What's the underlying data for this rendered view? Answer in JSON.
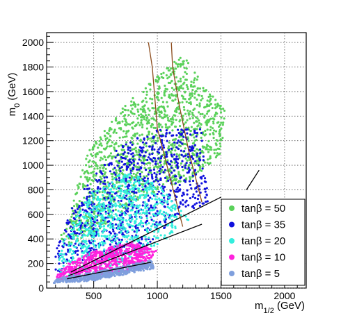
{
  "chart_data": {
    "type": "scatter",
    "title": "",
    "xlabel": "m_{1/2} (GeV)",
    "xlabel_main": "m",
    "xlabel_sub": "1/2",
    "xlabel_unit": " (GeV)",
    "ylabel": "m_0 (GeV)",
    "ylabel_main": "m",
    "ylabel_sub": "0",
    "ylabel_unit": " (GeV)",
    "xlim": [
      130,
      2170
    ],
    "ylim": [
      0,
      2080
    ],
    "x_ticks": [
      500,
      1000,
      1500,
      2000
    ],
    "x_tick_labels": [
      "500",
      "1000",
      "1500",
      "2000"
    ],
    "y_ticks": [
      0,
      200,
      400,
      600,
      800,
      1000,
      1200,
      1400,
      1600,
      1800,
      2000
    ],
    "y_tick_labels": [
      "0",
      "200",
      "400",
      "600",
      "800",
      "1000",
      "1200",
      "1400",
      "1600",
      "1800",
      "2000"
    ],
    "grid": true,
    "legend_position": "bottom-right",
    "series": [
      {
        "name": "tanβ = 50",
        "color": "#5ad15a",
        "region": [
          [
            240,
            330
          ],
          [
            420,
            380
          ],
          [
            700,
            600
          ],
          [
            900,
            750
          ],
          [
            1300,
            900
          ],
          [
            1500,
            1100
          ],
          [
            1540,
            1450
          ],
          [
            1400,
            1600
          ],
          [
            1200,
            1900
          ],
          [
            700,
            1450
          ],
          [
            450,
            1100
          ],
          [
            300,
            600
          ],
          [
            230,
            400
          ]
        ]
      },
      {
        "name": "tanβ = 35",
        "color": "#1010dd",
        "region": [
          [
            200,
            120
          ],
          [
            600,
            200
          ],
          [
            900,
            330
          ],
          [
            1100,
            520
          ],
          [
            1400,
            700
          ],
          [
            1350,
            1300
          ],
          [
            1000,
            1300
          ],
          [
            700,
            1150
          ],
          [
            450,
            850
          ],
          [
            300,
            600
          ],
          [
            200,
            300
          ]
        ]
      },
      {
        "name": "tanβ = 20",
        "color": "#33eedd",
        "region": [
          [
            220,
            90
          ],
          [
            600,
            150
          ],
          [
            950,
            300
          ],
          [
            1250,
            560
          ],
          [
            1000,
            850
          ],
          [
            750,
            950
          ],
          [
            500,
            800
          ],
          [
            330,
            550
          ],
          [
            230,
            300
          ]
        ]
      },
      {
        "name": "tanβ = 10",
        "color": "#ff22dd",
        "region": [
          [
            200,
            70
          ],
          [
            500,
            100
          ],
          [
            900,
            160
          ],
          [
            1000,
            300
          ],
          [
            800,
            380
          ],
          [
            500,
            300
          ],
          [
            300,
            200
          ],
          [
            220,
            120
          ]
        ]
      },
      {
        "name": "tanβ = 5",
        "color": "#7f9fdd",
        "region": [
          [
            180,
            40
          ],
          [
            500,
            60
          ],
          [
            980,
            160
          ],
          [
            950,
            230
          ],
          [
            700,
            170
          ],
          [
            400,
            110
          ],
          [
            220,
            80
          ]
        ]
      }
    ],
    "lines": [
      {
        "color": "#000000",
        "points": [
          [
            290,
            75
          ],
          [
            950,
            210
          ]
        ]
      },
      {
        "color": "#000000",
        "points": [
          [
            300,
            100
          ],
          [
            1350,
            520
          ]
        ]
      },
      {
        "color": "#000000",
        "points": [
          [
            320,
            130
          ],
          [
            1500,
            740
          ]
        ]
      },
      {
        "color": "#000000",
        "points": [
          [
            1700,
            800
          ],
          [
            1800,
            960
          ]
        ]
      },
      {
        "color": "#8b4a1a",
        "points": [
          [
            1200,
            500
          ],
          [
            1100,
            900
          ],
          [
            1000,
            1300
          ],
          [
            960,
            1800
          ],
          [
            930,
            2000
          ]
        ]
      },
      {
        "color": "#8b4a1a",
        "points": [
          [
            1350,
            700
          ],
          [
            1250,
            1100
          ],
          [
            1170,
            1500
          ],
          [
            1120,
            1800
          ],
          [
            1110,
            2000
          ]
        ]
      }
    ]
  }
}
